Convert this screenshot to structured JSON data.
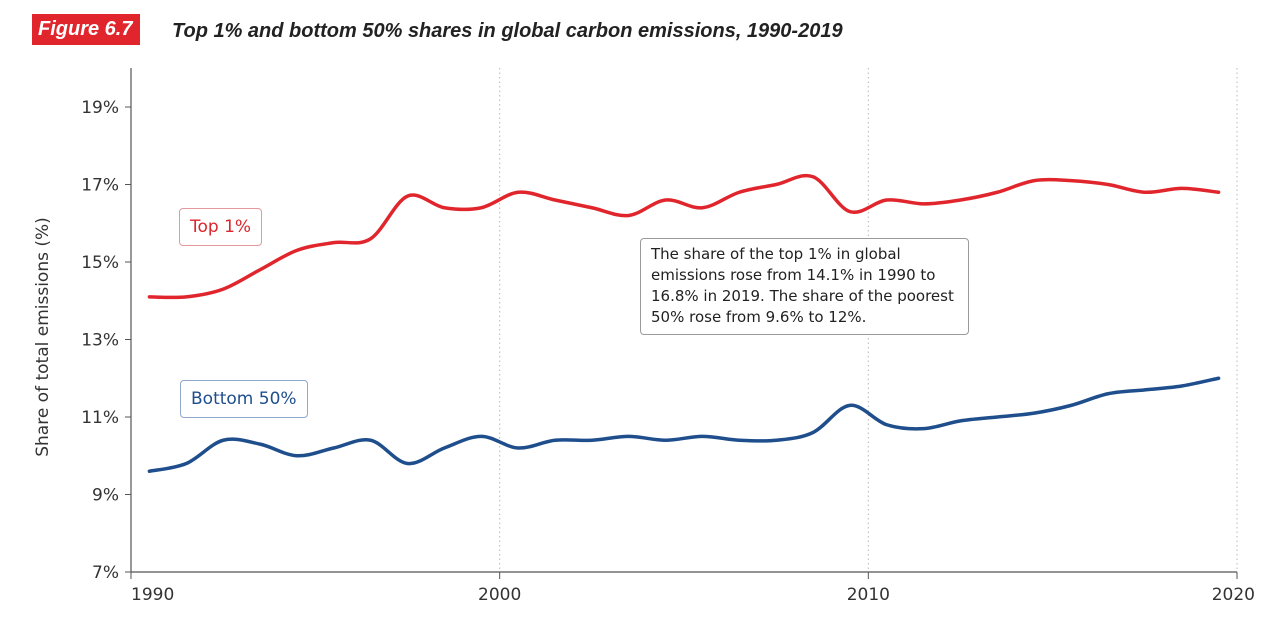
{
  "figure": {
    "badge": "Figure 6.7",
    "title": "Top 1% and bottom 50% shares in global carbon emissions, 1990-2019"
  },
  "annotation": "The share of the top 1% in global emissions rose from 14.1% in 1990 to 16.8% in 2019. The share of the poorest 50% rose from 9.6% to 12%.",
  "colors": {
    "top": "#e0262c",
    "bottom": "#1f4e8c",
    "badge": "#e0262c"
  },
  "chart_data": {
    "type": "line",
    "title": "Top 1% and bottom 50% shares in global carbon emissions, 1990-2019",
    "xlabel": "",
    "ylabel": "Share of total emissions (%)",
    "xlim": [
      1990,
      2020
    ],
    "ylim": [
      7,
      20
    ],
    "x_ticks": [
      1990,
      2000,
      2010,
      2020
    ],
    "x_tick_labels": [
      "1990",
      "2000",
      "2010",
      "2020"
    ],
    "y_ticks": [
      7,
      9,
      11,
      13,
      15,
      17,
      19
    ],
    "y_tick_labels": [
      "7%",
      "9%",
      "11%",
      "13%",
      "15%",
      "17%",
      "19%"
    ],
    "grid": "vertical dotted lines at x ticks",
    "x": [
      1990,
      1991,
      1992,
      1993,
      1994,
      1995,
      1996,
      1997,
      1998,
      1999,
      2000,
      2001,
      2002,
      2003,
      2004,
      2005,
      2006,
      2007,
      2008,
      2009,
      2010,
      2011,
      2012,
      2013,
      2014,
      2015,
      2016,
      2017,
      2018,
      2019
    ],
    "series": [
      {
        "name": "Top 1%",
        "values": [
          14.1,
          14.1,
          14.3,
          14.8,
          15.3,
          15.5,
          15.6,
          16.7,
          16.4,
          16.4,
          16.8,
          16.6,
          16.4,
          16.2,
          16.6,
          16.4,
          16.8,
          17.0,
          17.2,
          16.3,
          16.6,
          16.5,
          16.6,
          16.8,
          17.1,
          17.1,
          17.0,
          16.8,
          16.9,
          16.8
        ]
      },
      {
        "name": "Bottom 50%",
        "values": [
          9.6,
          9.8,
          10.4,
          10.3,
          10.0,
          10.2,
          10.4,
          9.8,
          10.2,
          10.5,
          10.2,
          10.4,
          10.4,
          10.5,
          10.4,
          10.5,
          10.4,
          10.4,
          10.6,
          11.3,
          10.8,
          10.7,
          10.9,
          11.0,
          11.1,
          11.3,
          11.6,
          11.7,
          11.8,
          12.0
        ]
      }
    ]
  }
}
